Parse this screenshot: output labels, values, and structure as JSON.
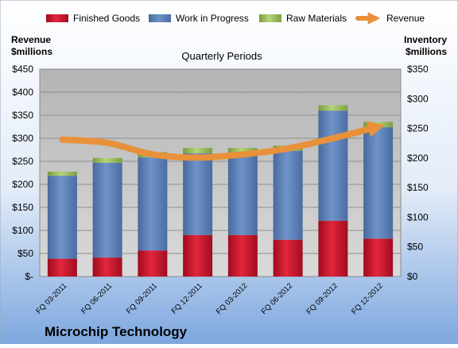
{
  "chart_data": {
    "type": "bar",
    "title": "Quarterly Periods",
    "company": "Microchip Technology",
    "left_axis_label_line1": "Revenue",
    "left_axis_label_line2": "$millions",
    "right_axis_label_line1": "Inventory",
    "right_axis_label_line2": "$millions",
    "categories": [
      "FQ 03-2011",
      "FQ 06-2011",
      "FQ 09-2011",
      "FQ 12-2011",
      "FQ 03-2012",
      "FQ 06-2012",
      "FQ 09-2012",
      "FQ 12-2012"
    ],
    "left_axis": {
      "ylim": [
        0,
        450
      ],
      "ticks": [
        0,
        50,
        100,
        150,
        200,
        250,
        300,
        350,
        400,
        450
      ],
      "tick_labels": [
        "$-",
        "$50",
        "$100",
        "$150",
        "$200",
        "$250",
        "$300",
        "$350",
        "$400",
        "$450"
      ]
    },
    "right_axis": {
      "ylim": [
        0,
        350
      ],
      "ticks": [
        0,
        50,
        100,
        150,
        200,
        250,
        300,
        350
      ],
      "tick_labels": [
        "$0",
        "$50",
        "$100",
        "$150",
        "$200",
        "$250",
        "$300",
        "$350"
      ]
    },
    "series": [
      {
        "name": "Finished Goods",
        "kind": "bar",
        "axis": "right",
        "color": "#c8102e",
        "values": [
          30,
          32,
          44,
          70,
          70,
          62,
          94,
          64
        ]
      },
      {
        "name": "Work in Progress",
        "kind": "bar",
        "axis": "right",
        "color": "#5b7fb5",
        "values": [
          140,
          160,
          157,
          138,
          138,
          150,
          186,
          188
        ]
      },
      {
        "name": "Raw Materials",
        "kind": "bar",
        "axis": "right",
        "color": "#9bbb59",
        "values": [
          7,
          8,
          9,
          9,
          9,
          9,
          9,
          9
        ]
      },
      {
        "name": "Revenue",
        "kind": "line",
        "axis": "left",
        "color": "#e8913a",
        "values": [
          297,
          290,
          265,
          258,
          265,
          278,
          300,
          325
        ]
      }
    ],
    "legend_position": "top",
    "grid": true,
    "plot_background": "#c0c0c0",
    "page_background_top": "#ffffff",
    "page_background_bottom": "#7da7df"
  }
}
